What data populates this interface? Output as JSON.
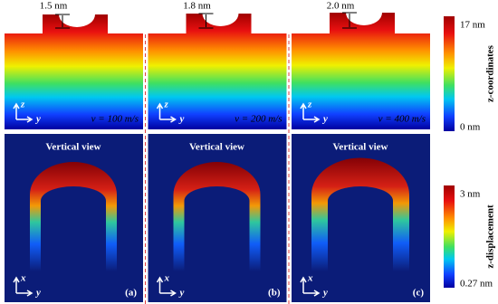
{
  "panels": [
    {
      "label": "(a)",
      "height": "1.5 nm",
      "speed": "v = 100 m/s",
      "view": "Vertical view"
    },
    {
      "label": "(b)",
      "height": "1.8 nm",
      "speed": "v = 200 m/s",
      "view": "Vertical view"
    },
    {
      "label": "(c)",
      "height": "2.0 nm",
      "speed": "v = 400 m/s",
      "view": "Vertical view"
    }
  ],
  "colorbars": [
    {
      "title": "z-coordinates",
      "max": "17 nm",
      "min": "0 nm"
    },
    {
      "title": "z-displacement",
      "max": "3 nm",
      "min": "0.27 nm"
    }
  ],
  "axes": {
    "top": {
      "vertical": "z",
      "horizontal": "y"
    },
    "bottom": {
      "vertical": "x",
      "horizontal": "y"
    }
  }
}
